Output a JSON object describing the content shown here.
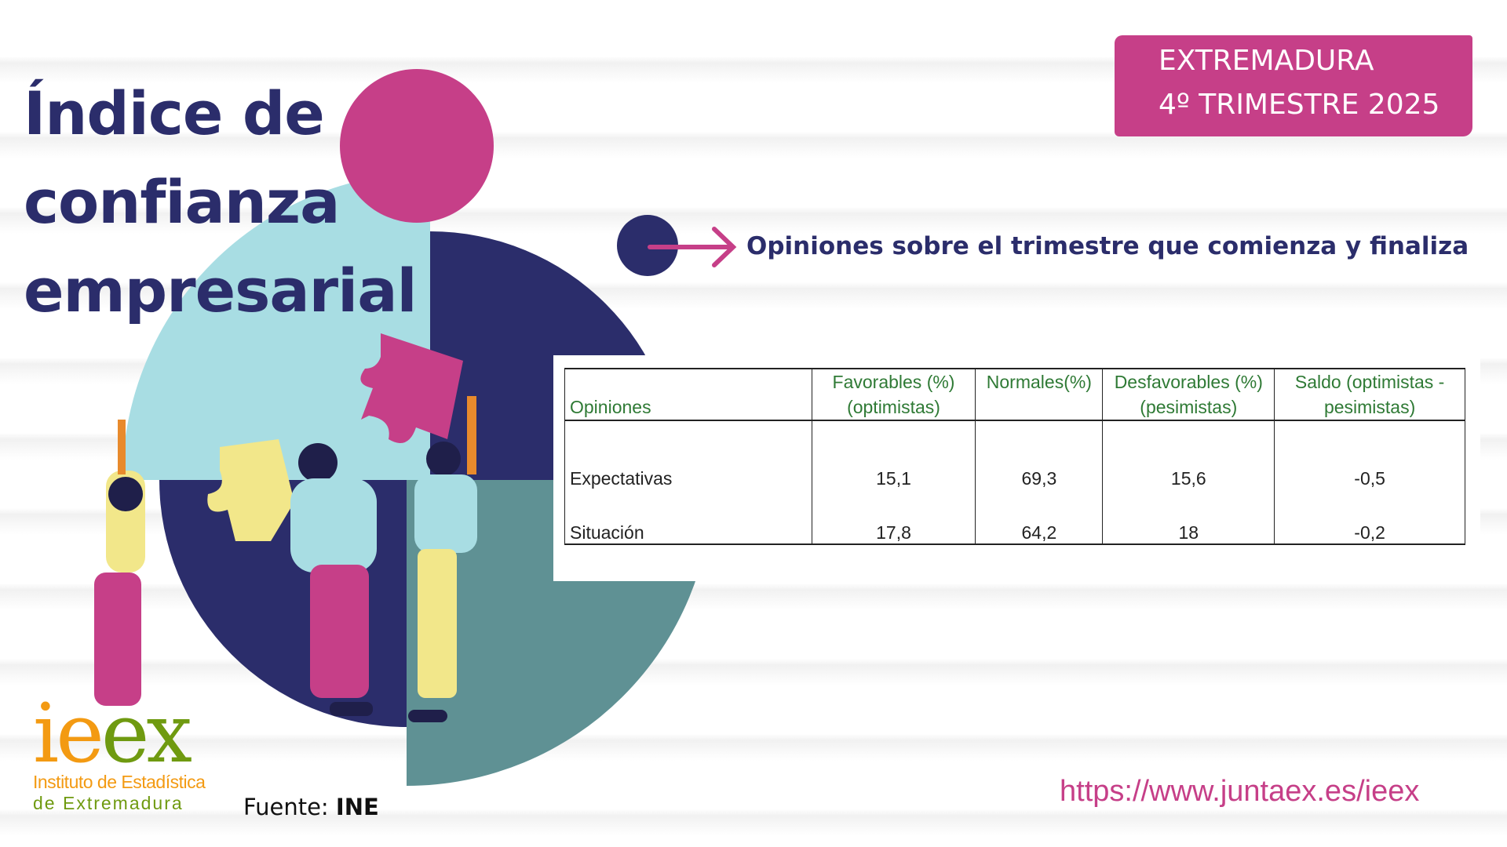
{
  "title": {
    "line1": "Índice de",
    "line2": "confianza",
    "line3": "empresarial"
  },
  "banner": {
    "region": "EXTREMADURA",
    "period": "4º TRIMESTRE 2025"
  },
  "section_heading": "Opiniones sobre el trimestre que comienza y finaliza",
  "table": {
    "headers": [
      "Opiniones",
      "Favorables (%) (optimistas)",
      "Normales(%)",
      "Desfavorables (%) (pesimistas)",
      "Saldo (optimistas - pesimistas)"
    ],
    "rows": [
      {
        "label": "Expectativas",
        "favorables": "15,1",
        "normales": "69,3",
        "desfavorables": "15,6",
        "saldo": "-0,5"
      },
      {
        "label": "Situación",
        "favorables": "17,8",
        "normales": "64,2",
        "desfavorables": "18",
        "saldo": "-0,2"
      }
    ]
  },
  "logo": {
    "mark": "ieex",
    "line1": "Instituto de Estadística",
    "line2": "de Extremadura"
  },
  "source": {
    "label": "Fuente:",
    "value": "INE"
  },
  "url": "https://www.juntaex.es/ieex",
  "colors": {
    "navy": "#2b2d6b",
    "pink": "#c63f88",
    "light_blue": "#a8dde3",
    "teal": "#5f9194",
    "header_green": "#2f7a35",
    "logo_orange": "#f39a12",
    "logo_green": "#6f9a10"
  }
}
